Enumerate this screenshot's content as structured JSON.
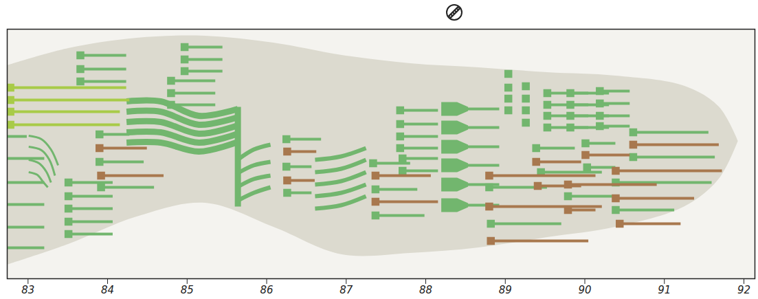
{
  "chart_data": {
    "type": "timeline",
    "xlim": [
      82.6,
      92
    ],
    "xticks": [
      83,
      84,
      85,
      86,
      87,
      88,
      89,
      90,
      91,
      92
    ],
    "ylim": [
      0,
      363
    ],
    "tick_labels": "x",
    "envelope": {
      "color": "#dcdacf",
      "x": [
        82.6,
        83.37,
        84.23,
        85.09,
        85.95,
        86.81,
        87.67,
        88.53,
        89.39,
        90.25,
        91.12,
        91.55,
        91.79
      ],
      "top": [
        53,
        28,
        13,
        10,
        20,
        38,
        50,
        56,
        63,
        68,
        83,
        113,
        163
      ],
      "bottom": [
        343,
        313,
        273,
        253,
        288,
        328,
        326,
        318,
        303,
        288,
        258,
        218,
        163
      ]
    },
    "curves": [
      {
        "color": "#72b66e",
        "line_style": "thin",
        "paths": [
          {
            "x": [
              82.87,
              83.03,
              83.15,
              83.24
            ],
            "y": [
              155,
              160,
              175,
              198
            ]
          },
          {
            "x": [
              82.87,
              83.03,
              83.13,
              83.2
            ],
            "y": [
              171,
              176,
              190,
              213
            ]
          },
          {
            "x": [
              82.87,
              83.0,
              83.09,
              83.15
            ],
            "y": [
              190,
              195,
              207,
              223
            ]
          },
          {
            "x": [
              82.87,
              82.98,
              83.05,
              83.11
            ],
            "y": [
              208,
              212,
              222,
              230
            ]
          }
        ]
      },
      {
        "color": "#72b66e",
        "line_style": "thick",
        "paths": [
          {
            "x": [
              84.1,
              84.53,
              85.01,
              85.5
            ],
            "y": [
              105,
              105,
              126,
              116
            ]
          },
          {
            "x": [
              84.1,
              84.53,
              85.01,
              85.5
            ],
            "y": [
              120,
              120,
              139,
              128
            ]
          },
          {
            "x": [
              84.1,
              84.53,
              85.01,
              85.5
            ],
            "y": [
              135,
              135,
              152,
              140
            ]
          },
          {
            "x": [
              84.1,
              84.53,
              85.01,
              85.5
            ],
            "y": [
              150,
              150,
              165,
              152
            ]
          },
          {
            "x": [
              84.1,
              84.53,
              85.01,
              85.5
            ],
            "y": [
              165,
              165,
              178,
              164
            ]
          },
          {
            "x": [
              85.5,
              85.5
            ],
            "y": [
              113,
              258
            ]
          }
        ]
      },
      {
        "color": "#72b66e",
        "line_style": "medium",
        "paths": [
          {
            "x": [
              85.52,
              85.7,
              85.91
            ],
            "y": [
              188,
              175,
              168
            ]
          },
          {
            "x": [
              85.52,
              85.7,
              85.91
            ],
            "y": [
              208,
              198,
              193
            ]
          },
          {
            "x": [
              85.52,
              85.7,
              85.91
            ],
            "y": [
              228,
              218,
              213
            ]
          },
          {
            "x": [
              85.52,
              85.7,
              85.91
            ],
            "y": [
              248,
              238,
              230
            ]
          },
          {
            "x": [
              86.47,
              86.8,
              87.11
            ],
            "y": [
              190,
              185,
              173
            ]
          },
          {
            "x": [
              86.47,
              86.8,
              87.11
            ],
            "y": [
              208,
              203,
              190
            ]
          },
          {
            "x": [
              86.47,
              86.8,
              87.11
            ],
            "y": [
              226,
              221,
              208
            ]
          },
          {
            "x": [
              86.47,
              86.8,
              87.11
            ],
            "y": [
              243,
              238,
              226
            ]
          },
          {
            "x": [
              86.47,
              86.8,
              87.11
            ],
            "y": [
              261,
              256,
              243
            ]
          }
        ]
      }
    ],
    "series": [
      {
        "color": "#a8cb48",
        "marker": "square",
        "values": [
          [
            82.64,
            84.1,
            85
          ],
          [
            82.64,
            84.14,
            103
          ],
          [
            82.64,
            84.02,
            120
          ],
          [
            82.64,
            84.02,
            139
          ]
        ]
      },
      {
        "color": "#72b66e",
        "marker": "none",
        "values": [
          [
            82.61,
            82.85,
            156
          ],
          [
            82.61,
            83.07,
            188
          ],
          [
            82.61,
            83.07,
            223
          ],
          [
            82.61,
            83.07,
            255
          ],
          [
            82.61,
            83.07,
            288
          ],
          [
            82.61,
            83.07,
            318
          ]
        ]
      },
      {
        "color": "#72b66e",
        "marker": "square",
        "values": [
          [
            83.52,
            84.1,
            38
          ],
          [
            83.52,
            84.1,
            58
          ],
          [
            83.52,
            84.1,
            76
          ],
          [
            84.83,
            85.31,
            26
          ],
          [
            84.83,
            85.31,
            44
          ],
          [
            84.83,
            85.31,
            61
          ],
          [
            84.66,
            85.22,
            75
          ],
          [
            84.66,
            85.22,
            93
          ],
          [
            84.66,
            85.22,
            110
          ],
          [
            83.76,
            84.14,
            153
          ],
          [
            83.76,
            84.32,
            193
          ],
          [
            83.78,
            84.45,
            230
          ],
          [
            83.37,
            83.93,
            223
          ],
          [
            83.37,
            83.93,
            243
          ],
          [
            83.37,
            83.93,
            261
          ],
          [
            83.37,
            83.93,
            280
          ],
          [
            83.37,
            83.93,
            298
          ],
          [
            86.11,
            86.55,
            160
          ],
          [
            86.11,
            86.43,
            200
          ],
          [
            86.12,
            86.43,
            238
          ],
          [
            87.2,
            87.67,
            195
          ],
          [
            87.23,
            87.76,
            233
          ],
          [
            87.23,
            87.85,
            271
          ],
          [
            87.54,
            88.02,
            118
          ],
          [
            87.54,
            88.02,
            138
          ],
          [
            87.54,
            88.02,
            156
          ],
          [
            87.54,
            88.02,
            173
          ],
          [
            87.57,
            88.02,
            188
          ],
          [
            87.57,
            88.02,
            206
          ],
          [
            88.9,
            88.93,
            65
          ],
          [
            88.9,
            88.93,
            85
          ],
          [
            88.9,
            88.93,
            101
          ],
          [
            88.9,
            88.93,
            118
          ],
          [
            89.12,
            89.15,
            83
          ],
          [
            89.12,
            89.15,
            101
          ],
          [
            89.12,
            89.15,
            118
          ],
          [
            89.12,
            89.15,
            136
          ],
          [
            89.39,
            89.91,
            93
          ],
          [
            89.39,
            89.91,
            110
          ],
          [
            89.39,
            89.91,
            126
          ],
          [
            89.39,
            89.91,
            143
          ],
          [
            89.68,
            90.17,
            93
          ],
          [
            89.68,
            90.17,
            110
          ],
          [
            89.68,
            90.17,
            126
          ],
          [
            89.68,
            90.17,
            143
          ],
          [
            90.05,
            90.43,
            90
          ],
          [
            90.05,
            90.43,
            108
          ],
          [
            90.05,
            90.43,
            126
          ],
          [
            90.05,
            90.43,
            141
          ],
          [
            90.47,
            91.42,
            150
          ],
          [
            90.47,
            91.5,
            186
          ],
          [
            90.25,
            91.46,
            223
          ],
          [
            90.25,
            90.99,
            263
          ],
          [
            89.25,
            89.74,
            173
          ],
          [
            89.31,
            90.08,
            208
          ],
          [
            88.66,
            89.39,
            230
          ],
          [
            88.68,
            89.57,
            283
          ],
          [
            89.87,
            90.25,
            166
          ],
          [
            89.89,
            90.25,
            201
          ],
          [
            89.65,
            90.25,
            243
          ]
        ]
      },
      {
        "color": "#72b66e",
        "marker": "wedge",
        "values": [
          [
            88.1,
            88.79,
            116
          ],
          [
            88.1,
            88.79,
            143
          ],
          [
            88.1,
            88.79,
            171
          ],
          [
            88.1,
            88.79,
            198
          ],
          [
            88.1,
            88.79,
            226
          ],
          [
            88.1,
            88.79,
            256
          ]
        ]
      },
      {
        "color": "#a8784e",
        "marker": "square",
        "values": [
          [
            83.76,
            84.36,
            173
          ],
          [
            83.78,
            84.57,
            213
          ],
          [
            86.12,
            86.49,
            178
          ],
          [
            86.12,
            86.47,
            220
          ],
          [
            87.23,
            87.93,
            213
          ],
          [
            87.23,
            88.02,
            251
          ],
          [
            90.47,
            91.55,
            168
          ],
          [
            90.25,
            91.59,
            206
          ],
          [
            90.25,
            91.24,
            246
          ],
          [
            90.3,
            91.07,
            283
          ],
          [
            89.25,
            89.82,
            193
          ],
          [
            89.27,
            89.82,
            228
          ],
          [
            88.66,
            90.0,
            213
          ],
          [
            88.66,
            90.08,
            258
          ],
          [
            88.68,
            89.91,
            308
          ],
          [
            89.87,
            90.43,
            183
          ],
          [
            89.65,
            90.77,
            226
          ],
          [
            89.65,
            90.0,
            263
          ]
        ]
      }
    ]
  }
}
